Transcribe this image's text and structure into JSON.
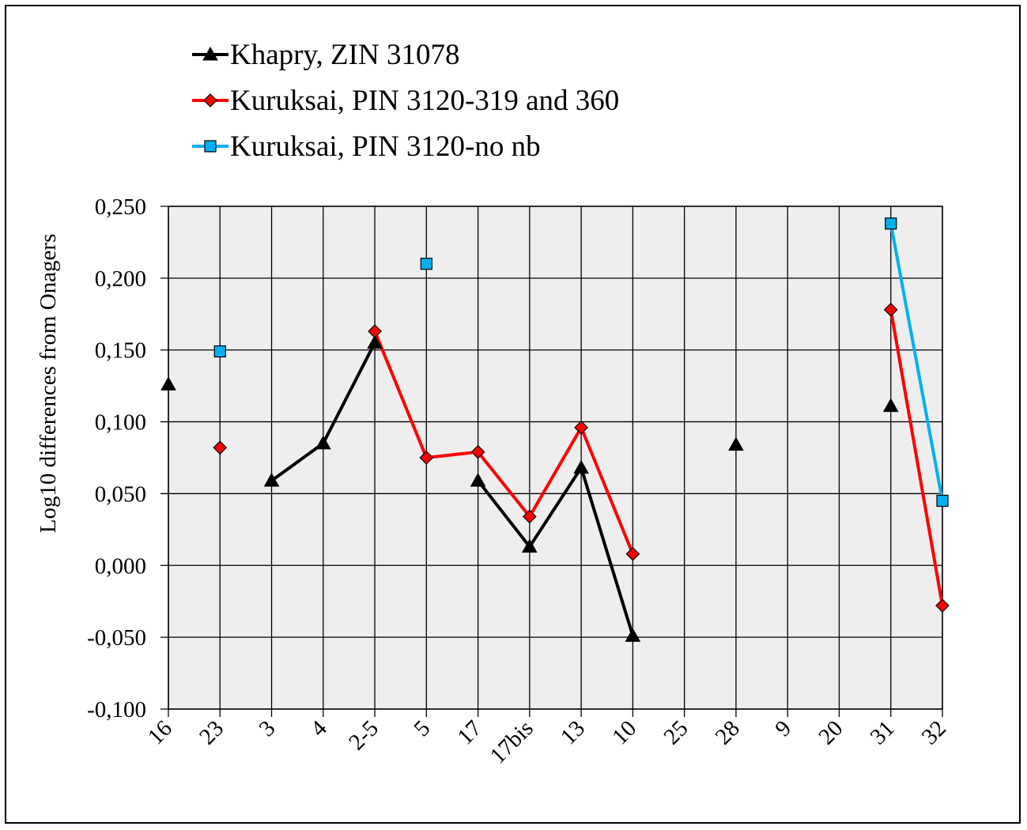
{
  "chart_data": {
    "type": "line",
    "categories": [
      "16",
      "23",
      "3",
      "4",
      "2-5",
      "5",
      "17",
      "17bis",
      "13",
      "10",
      "25",
      "28",
      "9",
      "20",
      "31",
      "32"
    ],
    "ylabel": "Log10 differences from Onagers",
    "xlabel": "",
    "ylim": [
      -0.1,
      0.25
    ],
    "yticks": [
      -0.1,
      -0.05,
      0.0,
      0.05,
      0.1,
      0.15,
      0.2,
      0.25
    ],
    "ytick_labels": [
      "-0,100",
      "-0,050",
      "0,000",
      "0,050",
      "0,100",
      "0,150",
      "0,200",
      "0,250"
    ],
    "grid": true,
    "legend_position": "top-left",
    "series": [
      {
        "name": "Khapry, ZIN 31078",
        "color": "#000000",
        "marker": "triangle",
        "values": [
          0.126,
          null,
          0.059,
          0.085,
          0.155,
          null,
          0.059,
          0.013,
          0.068,
          -0.049,
          null,
          0.084,
          null,
          null,
          0.111,
          null
        ]
      },
      {
        "name": "Kuruksai, PIN 3120-319 and 360",
        "color": "#ff0000",
        "marker": "diamond",
        "values": [
          null,
          0.082,
          null,
          null,
          0.163,
          0.075,
          0.079,
          0.034,
          0.096,
          0.008,
          null,
          null,
          null,
          null,
          0.178,
          -0.028
        ]
      },
      {
        "name": "Kuruksai, PIN 3120-no nb",
        "color": "#00b0f0",
        "marker": "square",
        "values": [
          null,
          0.149,
          null,
          null,
          null,
          0.21,
          null,
          null,
          null,
          null,
          null,
          null,
          null,
          null,
          0.238,
          0.045
        ]
      }
    ]
  }
}
